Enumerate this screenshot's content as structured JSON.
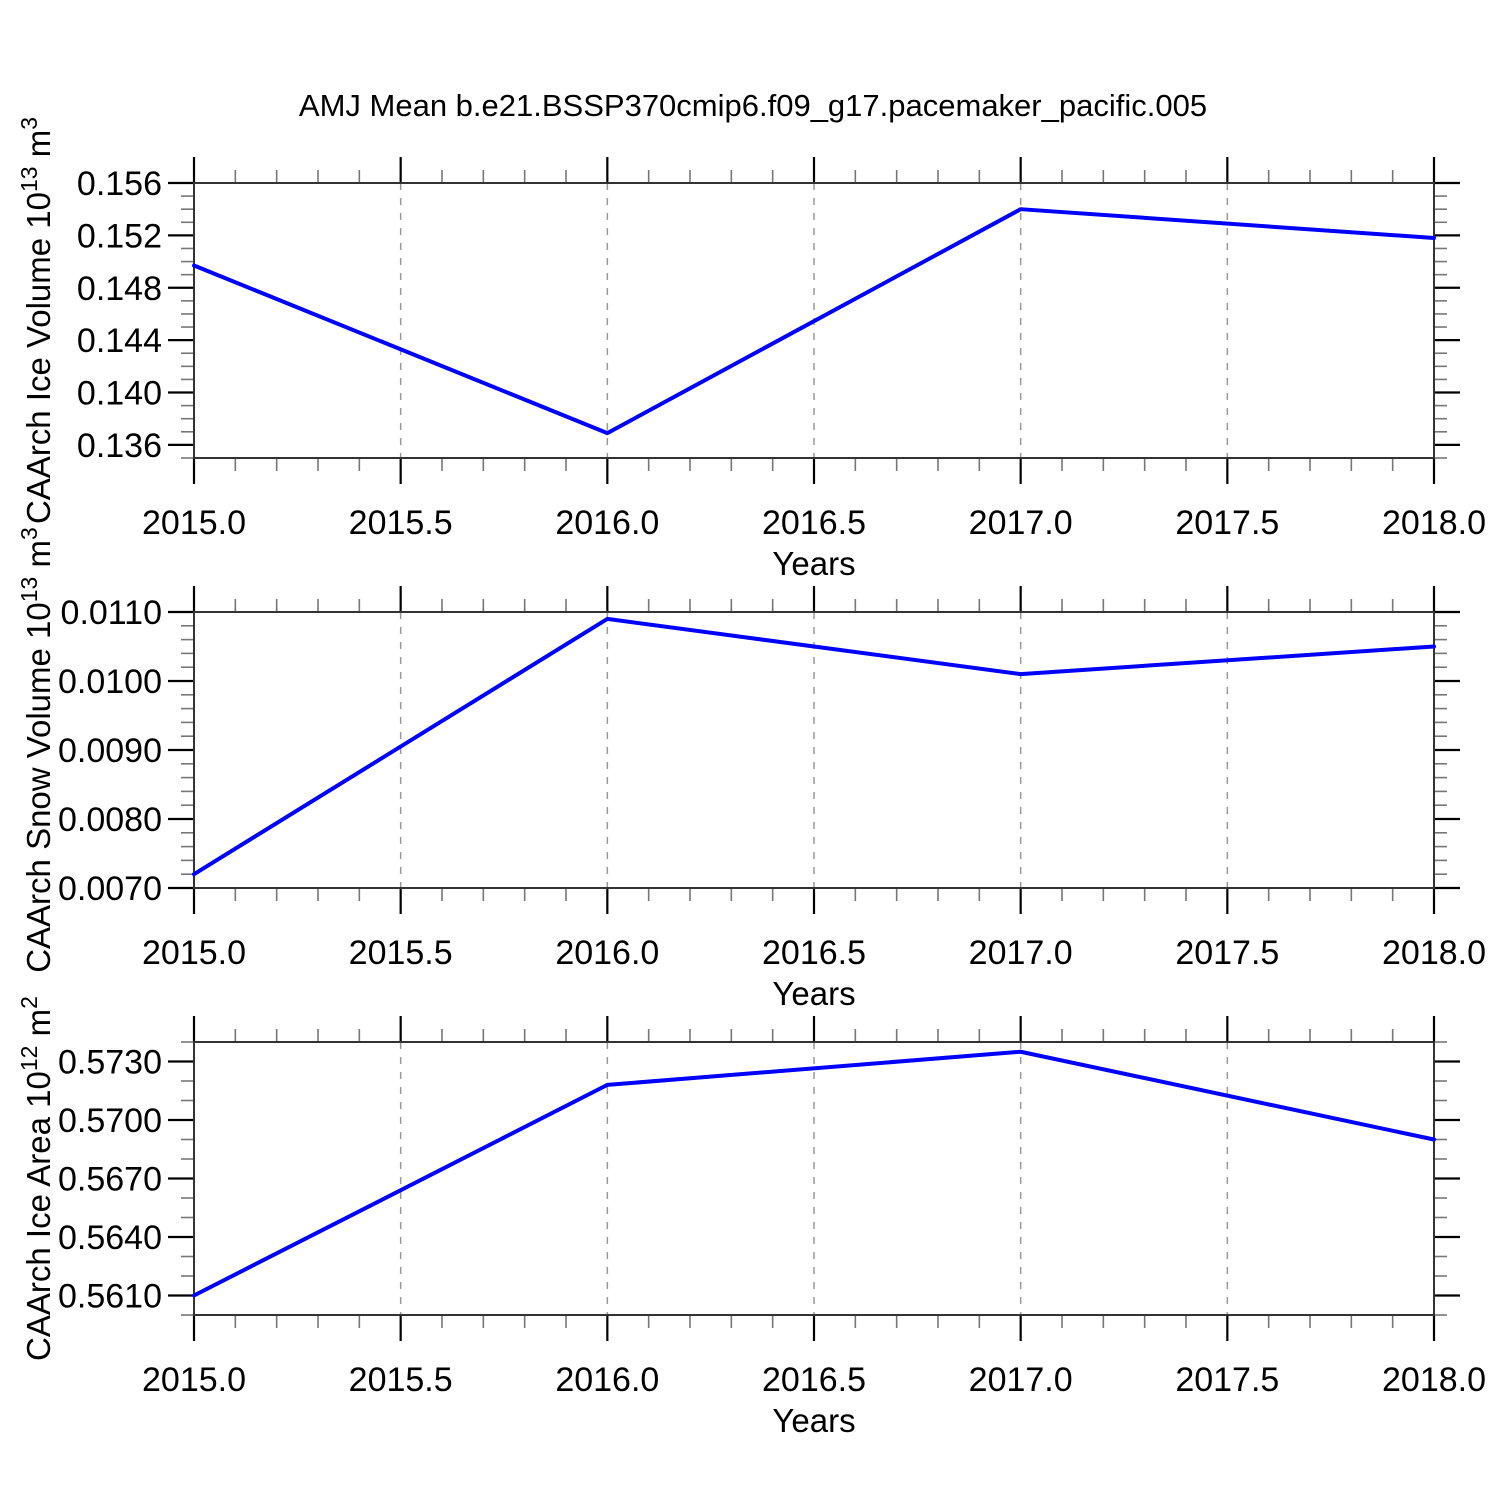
{
  "title": "AMJ Mean b.e21.BSSP370cmip6.f09_g17.pacemaker_pacific.005",
  "colors": {
    "line": "#0000ff",
    "grid": "#999999",
    "box": "#333333",
    "major_tick": "#000000",
    "minor_tick": "#777777",
    "text": "#000000"
  },
  "chart_data": [
    {
      "type": "line",
      "x": [
        2015.0,
        2016.0,
        2017.0,
        2018.0
      ],
      "values": [
        0.1497,
        0.1369,
        0.154,
        0.1518
      ],
      "xlabel": "Years",
      "ylabel": "CAArch Ice Volume 10^13 m^3",
      "ylabel_segments": [
        {
          "t": "CAArch Ice Volume 10",
          "sup": false
        },
        {
          "t": "13",
          "sup": true
        },
        {
          "t": " m",
          "sup": false
        },
        {
          "t": "3",
          "sup": true
        }
      ],
      "xlim": [
        2015.0,
        2018.0
      ],
      "ylim": [
        0.135,
        0.156
      ],
      "xtick_labels": [
        "2015.0",
        "2015.5",
        "2016.0",
        "2016.5",
        "2017.0",
        "2017.5",
        "2018.0"
      ],
      "xticks": [
        2015.0,
        2015.5,
        2016.0,
        2016.5,
        2017.0,
        2017.5,
        2018.0
      ],
      "xtick_minor_step": 0.1,
      "ytick_labels": [
        "0.136",
        "0.140",
        "0.144",
        "0.148",
        "0.152",
        "0.156"
      ],
      "yticks": [
        0.136,
        0.14,
        0.144,
        0.148,
        0.152,
        0.156
      ],
      "ytick_minor_step": 0.001,
      "grid_x": [
        2015.5,
        2016.0,
        2016.5,
        2017.0,
        2017.5
      ],
      "grid_on": true,
      "legend": null
    },
    {
      "type": "line",
      "x": [
        2015.0,
        2016.0,
        2017.0,
        2018.0
      ],
      "values": [
        0.0072,
        0.0109,
        0.0101,
        0.0105
      ],
      "xlabel": "Years",
      "ylabel": "CAArch Snow Volume 10^13 m^3",
      "ylabel_segments": [
        {
          "t": "CAArch Snow Volume 10",
          "sup": false
        },
        {
          "t": "13",
          "sup": true
        },
        {
          "t": " m",
          "sup": false
        },
        {
          "t": "3",
          "sup": true
        }
      ],
      "xlim": [
        2015.0,
        2018.0
      ],
      "ylim": [
        0.007,
        0.011
      ],
      "xtick_labels": [
        "2015.0",
        "2015.5",
        "2016.0",
        "2016.5",
        "2017.0",
        "2017.5",
        "2018.0"
      ],
      "xticks": [
        2015.0,
        2015.5,
        2016.0,
        2016.5,
        2017.0,
        2017.5,
        2018.0
      ],
      "xtick_minor_step": 0.1,
      "ytick_labels": [
        "0.0070",
        "0.0080",
        "0.0090",
        "0.0100",
        "0.0110"
      ],
      "yticks": [
        0.007,
        0.008,
        0.009,
        0.01,
        0.011
      ],
      "ytick_minor_step": 0.0002,
      "grid_x": [
        2015.5,
        2016.0,
        2016.5,
        2017.0,
        2017.5
      ],
      "grid_on": true,
      "legend": null
    },
    {
      "type": "line",
      "x": [
        2015.0,
        2016.0,
        2017.0,
        2018.0
      ],
      "values": [
        0.561,
        0.5718,
        0.5735,
        0.569
      ],
      "xlabel": "Years",
      "ylabel": "CAArch Ice Area 10^12 m^2",
      "ylabel_segments": [
        {
          "t": "CAArch Ice Area 10",
          "sup": false
        },
        {
          "t": "12",
          "sup": true
        },
        {
          "t": " m",
          "sup": false
        },
        {
          "t": "2",
          "sup": true
        }
      ],
      "xlim": [
        2015.0,
        2018.0
      ],
      "ylim": [
        0.56,
        0.574
      ],
      "xtick_labels": [
        "2015.0",
        "2015.5",
        "2016.0",
        "2016.5",
        "2017.0",
        "2017.5",
        "2018.0"
      ],
      "xticks": [
        2015.0,
        2015.5,
        2016.0,
        2016.5,
        2017.0,
        2017.5,
        2018.0
      ],
      "xtick_minor_step": 0.1,
      "ytick_labels": [
        "0.5610",
        "0.5640",
        "0.5670",
        "0.5700",
        "0.5730"
      ],
      "yticks": [
        0.561,
        0.564,
        0.567,
        0.57,
        0.573
      ],
      "ytick_minor_step": 0.001,
      "grid_x": [
        2015.5,
        2016.0,
        2016.5,
        2017.0,
        2017.5
      ],
      "grid_on": true,
      "legend": null
    }
  ]
}
